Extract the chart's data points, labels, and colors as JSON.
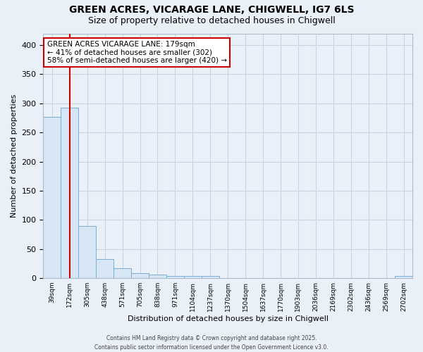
{
  "title1": "GREEN ACRES, VICARAGE LANE, CHIGWELL, IG7 6LS",
  "title2": "Size of property relative to detached houses in Chigwell",
  "xlabel": "Distribution of detached houses by size in Chigwell",
  "ylabel": "Number of detached properties",
  "categories": [
    "39sqm",
    "172sqm",
    "305sqm",
    "438sqm",
    "571sqm",
    "705sqm",
    "838sqm",
    "971sqm",
    "1104sqm",
    "1237sqm",
    "1370sqm",
    "1504sqm",
    "1637sqm",
    "1770sqm",
    "1903sqm",
    "2036sqm",
    "2169sqm",
    "2302sqm",
    "2436sqm",
    "2569sqm",
    "2702sqm"
  ],
  "values": [
    277,
    293,
    90,
    33,
    17,
    8,
    6,
    3,
    3,
    3,
    0,
    0,
    0,
    0,
    0,
    0,
    0,
    0,
    0,
    0,
    3
  ],
  "bar_color": "#d6e6f5",
  "bar_edge_color": "#7aaed6",
  "red_line_x": 1.0,
  "annotation_text": "GREEN ACRES VICARAGE LANE: 179sqm\n← 41% of detached houses are smaller (302)\n58% of semi-detached houses are larger (420) →",
  "annotation_box_color": "#ffffff",
  "annotation_box_edge_color": "#cc0000",
  "grid_color": "#c5d5e5",
  "background_color": "#eaf0f8",
  "ylim_max": 420,
  "yticks": [
    0,
    50,
    100,
    150,
    200,
    250,
    300,
    350,
    400
  ],
  "footer": "Contains HM Land Registry data © Crown copyright and database right 2025.\nContains public sector information licensed under the Open Government Licence v3.0."
}
